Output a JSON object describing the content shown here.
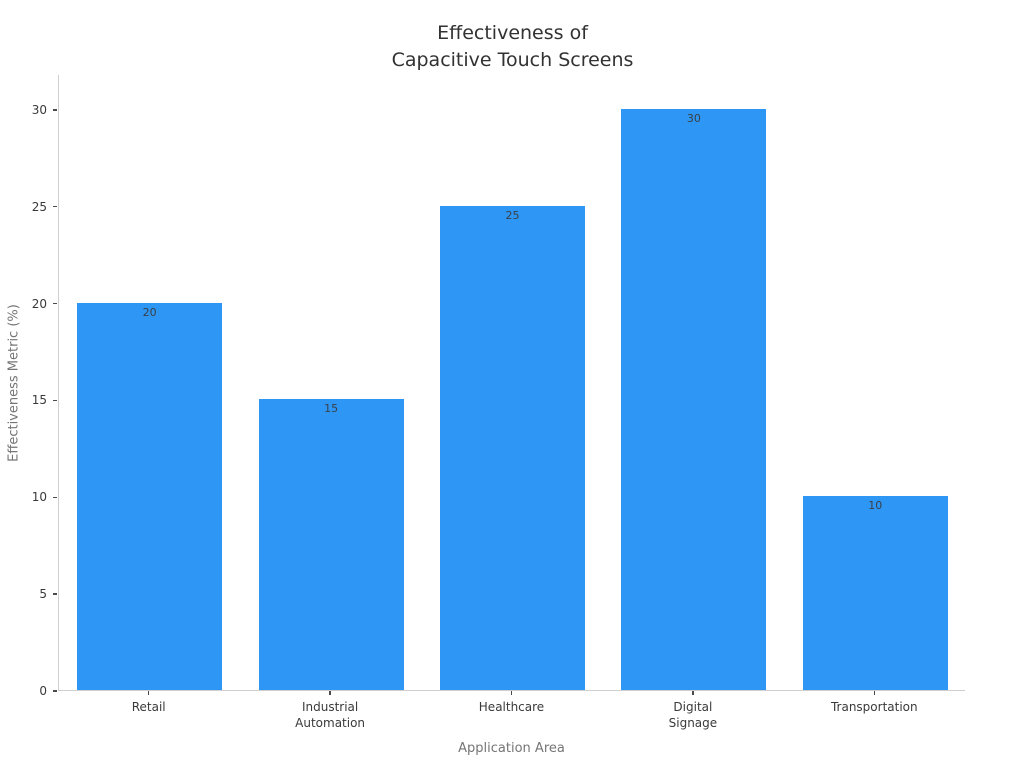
{
  "figure": {
    "title_lines": [
      "Effectiveness of",
      "Capacitive Touch Screens"
    ],
    "colors": {
      "background": "#ffffff",
      "bar": "#2e96f5",
      "title_text": "#323232",
      "tick_text": "#3a3a3a",
      "tick_mark": "#4a4a4a",
      "value_label_text": "#3a3f46",
      "axis_label_text": "#757575",
      "spine": "#cfcfcf"
    }
  },
  "chart_data": {
    "type": "bar",
    "title": "Effectiveness of\nCapacitive Touch Screens",
    "categories": [
      "Retail",
      "Industrial\nAutomation",
      "Healthcare",
      "Digital\nSignage",
      "Transportation"
    ],
    "values": [
      20,
      15,
      25,
      30,
      10
    ],
    "value_labels": [
      "20",
      "15",
      "25",
      "30",
      "10"
    ],
    "xlabel": "Application Area",
    "ylabel": "Effectiveness Metric (%)",
    "yticks": [
      0,
      5,
      10,
      15,
      20,
      25,
      30
    ],
    "ylim": [
      0,
      31.8
    ],
    "bar_width_fraction": 0.8,
    "grid": false,
    "legend": null,
    "value_labels_position": "inside-top"
  }
}
